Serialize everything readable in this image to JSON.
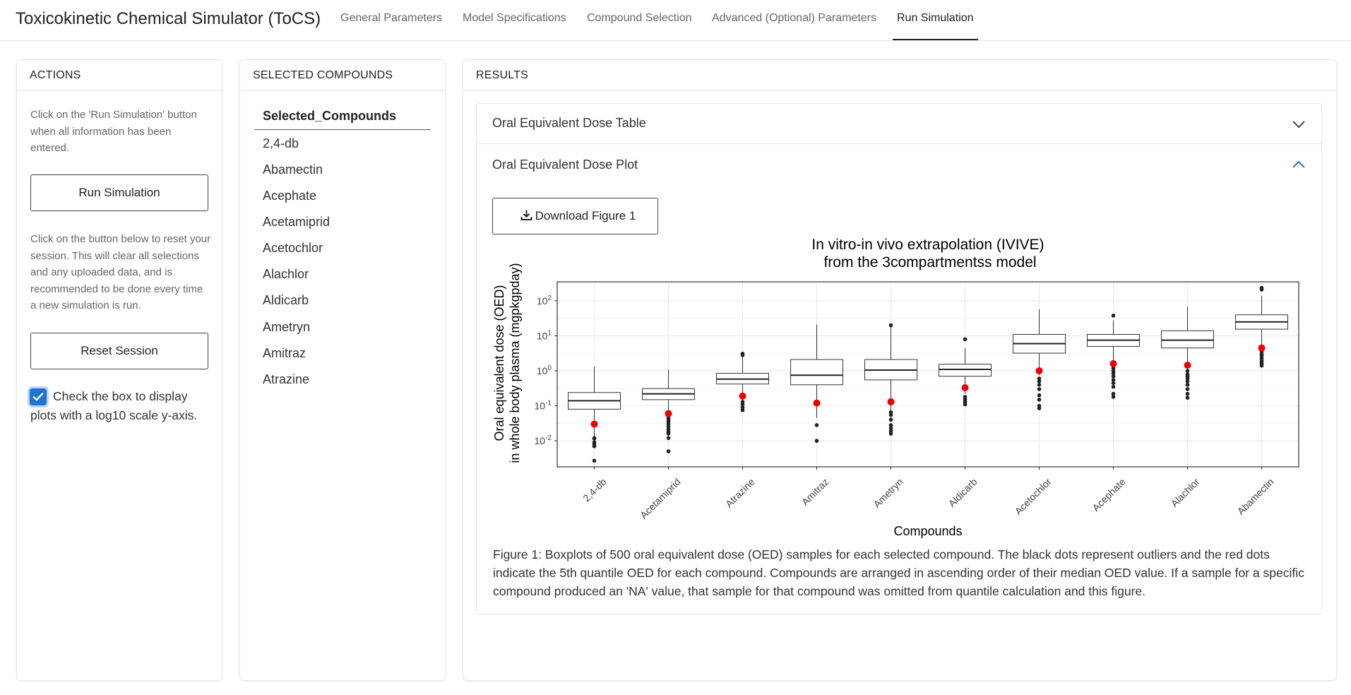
{
  "app": {
    "title": "Toxicokinetic Chemical Simulator (ToCS)"
  },
  "nav": {
    "tabs": [
      {
        "label": "General Parameters"
      },
      {
        "label": "Model Specifications"
      },
      {
        "label": "Compound Selection"
      },
      {
        "label": "Advanced (Optional) Parameters"
      },
      {
        "label": "Run Simulation"
      }
    ],
    "active": "Run Simulation"
  },
  "actions": {
    "header": "ACTIONS",
    "run_help": "Click on the 'Run Simulation' button when all information has been entered.",
    "run_button": "Run Simulation",
    "reset_help": "Click on the button below to reset your session. This will clear all selections and any uploaded data, and is recommended to be done every time a new simulation is run.",
    "reset_button": "Reset Session",
    "log_checkbox_label": "Check the box to display plots with a log10 scale y-axis.",
    "log_checked": true
  },
  "selected": {
    "header": "SELECTED COMPOUNDS",
    "column": "Selected_Compounds",
    "items": [
      "2,4-db",
      "Abamectin",
      "Acephate",
      "Acetamiprid",
      "Acetochlor",
      "Alachlor",
      "Aldicarb",
      "Ametryn",
      "Amitraz",
      "Atrazine"
    ]
  },
  "results": {
    "header": "RESULTS",
    "panel_table": "Oral Equivalent Dose Table",
    "panel_plot": "Oral Equivalent Dose Plot",
    "download_button": "Download Figure 1",
    "caption": "Figure 1: Boxplots of 500 oral equivalent dose (OED) samples for each selected compound. The black dots represent outliers and the red dots indicate the 5th quantile OED for each compound. Compounds are arranged in ascending order of their median OED value. If a sample for a specific compound produced an 'NA' value, that sample for that compound was omitted from quantile calculation and this figure."
  },
  "chart_data": {
    "type": "boxplot",
    "title": "In vitro-in vivo extrapolation (IVIVE)",
    "subtitle": "from the 3compartmentss model",
    "xlabel": "Compounds",
    "ylabel_line1": "Oral equivalent dose (OED)",
    "ylabel_line2": "in whole body plasma (mgpkgpday)",
    "yscale": "log10",
    "ylim": [
      0.0018,
      350
    ],
    "yticks": [
      0.01,
      0.1,
      1,
      10,
      100
    ],
    "ytick_labels": [
      {
        "base": "10",
        "exp": "-2"
      },
      {
        "base": "10",
        "exp": "-1"
      },
      {
        "base": "10",
        "exp": "0"
      },
      {
        "base": "10",
        "exp": "1"
      },
      {
        "base": "10",
        "exp": "2"
      }
    ],
    "grid": true,
    "colors": {
      "box": "#333333",
      "outlier": "#222222",
      "quantile": "#ee0000",
      "grid": "#ebebeb"
    },
    "categories": [
      "2,4-db",
      "Acetamiprid",
      "Atrazine",
      "Amitraz",
      "Ametryn",
      "Aldicarb",
      "Acetochlor",
      "Acephate",
      "Alachlor",
      "Abamectin"
    ],
    "boxes": [
      {
        "whisker_low": 0.0095,
        "q1": 0.08,
        "median": 0.14,
        "q3": 0.24,
        "whisker_high": 1.3,
        "q5": 0.03,
        "outliers": [
          0.0027,
          0.007,
          0.008,
          0.009,
          0.012,
          0.0115
        ]
      },
      {
        "whisker_low": 0.025,
        "q1": 0.15,
        "median": 0.22,
        "q3": 0.31,
        "whisker_high": 1.1,
        "q5": 0.06,
        "outliers": [
          0.005,
          0.012,
          0.016,
          0.018,
          0.021,
          0.025,
          0.03,
          0.035,
          0.04,
          0.045
        ]
      },
      {
        "whisker_low": 0.14,
        "q1": 0.42,
        "median": 0.58,
        "q3": 0.85,
        "whisker_high": 2.5,
        "q5": 0.19,
        "outliers": [
          0.075,
          0.09,
          0.11,
          0.13,
          2.8,
          3.1
        ]
      },
      {
        "whisker_low": 0.045,
        "q1": 0.4,
        "median": 0.75,
        "q3": 2.1,
        "whisker_high": 21,
        "q5": 0.12,
        "outliers": [
          0.01,
          0.028
        ]
      },
      {
        "whisker_low": 0.045,
        "q1": 0.55,
        "median": 1.05,
        "q3": 2.1,
        "whisker_high": 19,
        "q5": 0.13,
        "outliers": [
          0.016,
          0.019,
          0.023,
          0.028,
          0.04,
          0.055,
          0.065,
          20
        ]
      },
      {
        "whisker_low": 0.22,
        "q1": 0.7,
        "median": 1.1,
        "q3": 1.55,
        "whisker_high": 4.5,
        "q5": 0.33,
        "outliers": [
          0.11,
          0.13,
          0.15,
          0.18,
          8
        ]
      },
      {
        "whisker_low": 0.75,
        "q1": 3.2,
        "median": 6,
        "q3": 11,
        "whisker_high": 57,
        "q5": 1.0,
        "outliers": [
          0.085,
          0.1,
          0.15,
          0.2,
          0.3,
          0.4,
          0.5,
          0.6
        ]
      },
      {
        "whisker_low": 2.0,
        "q1": 5.0,
        "median": 7.5,
        "q3": 11,
        "whisker_high": 28,
        "q5": 1.6,
        "outliers": [
          0.18,
          0.22,
          0.35,
          0.45,
          0.55,
          0.7,
          0.85,
          1.0,
          1.2,
          38
        ]
      },
      {
        "whisker_low": 1.7,
        "q1": 4.5,
        "median": 7.5,
        "q3": 14,
        "whisker_high": 68,
        "q5": 1.45,
        "outliers": [
          0.17,
          0.22,
          0.3,
          0.4,
          0.5,
          0.6,
          0.7,
          0.8,
          1.0
        ]
      },
      {
        "whisker_low": 4.5,
        "q1": 15.5,
        "median": 25,
        "q3": 40,
        "whisker_high": 140,
        "q5": 4.5,
        "outliers": [
          1.4,
          1.6,
          1.8,
          2.0,
          2.3,
          2.7,
          3.0,
          3.5,
          210,
          235
        ]
      }
    ]
  }
}
